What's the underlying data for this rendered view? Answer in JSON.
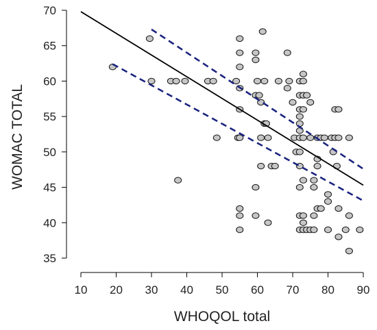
{
  "chart_data": {
    "type": "scatter",
    "title": "",
    "xlabel": "WHOQOL total",
    "ylabel": "WOMAC TOTAL",
    "xlim": [
      10,
      90
    ],
    "ylim": [
      35,
      70
    ],
    "x_ticks": [
      "10",
      "20",
      "30",
      "40",
      "50",
      "60",
      "70",
      "80",
      "90"
    ],
    "y_ticks": [
      "35",
      "40",
      "45",
      "50",
      "55",
      "60",
      "65",
      "70"
    ],
    "grid": false,
    "legend": "none",
    "colors": {
      "points_fill": "#c6c6c6",
      "points_edge": "#111111",
      "fit_line": "#000000",
      "ci_lines": "#1a237e"
    },
    "fit_line": {
      "x": [
        10,
        90
      ],
      "y": [
        69.8,
        45.3
      ]
    },
    "confidence_band": {
      "upper": {
        "x": [
          30,
          90
        ],
        "y": [
          67.3,
          47.6
        ]
      },
      "lower": {
        "x": [
          19,
          90
        ],
        "y": [
          62.4,
          43.1
        ]
      }
    },
    "points": [
      [
        19,
        62
      ],
      [
        29.5,
        66
      ],
      [
        30,
        60
      ],
      [
        35.5,
        60
      ],
      [
        37,
        60
      ],
      [
        37.5,
        46
      ],
      [
        39.5,
        60
      ],
      [
        46,
        60
      ],
      [
        47.5,
        60
      ],
      [
        48.5,
        52
      ],
      [
        54,
        60
      ],
      [
        54.5,
        52
      ],
      [
        55,
        66
      ],
      [
        55,
        64
      ],
      [
        55,
        62
      ],
      [
        55,
        59
      ],
      [
        55,
        56
      ],
      [
        55,
        42
      ],
      [
        55,
        41
      ],
      [
        55,
        39
      ],
      [
        55,
        52
      ],
      [
        59.5,
        64
      ],
      [
        59.5,
        63
      ],
      [
        59.5,
        58
      ],
      [
        59.5,
        45
      ],
      [
        59.5,
        41
      ],
      [
        60,
        60
      ],
      [
        60.5,
        58
      ],
      [
        61,
        57
      ],
      [
        61,
        52
      ],
      [
        61,
        48
      ],
      [
        61.5,
        67
      ],
      [
        62,
        60
      ],
      [
        62,
        54
      ],
      [
        62.5,
        54
      ],
      [
        63,
        52
      ],
      [
        63,
        40
      ],
      [
        64,
        48
      ],
      [
        65,
        48
      ],
      [
        66,
        60
      ],
      [
        68.5,
        64
      ],
      [
        68.5,
        59
      ],
      [
        69,
        60
      ],
      [
        70,
        57
      ],
      [
        70.5,
        52
      ],
      [
        71,
        50
      ],
      [
        72,
        60
      ],
      [
        72,
        58
      ],
      [
        72,
        56
      ],
      [
        72,
        55
      ],
      [
        72,
        54
      ],
      [
        72,
        53
      ],
      [
        72,
        52
      ],
      [
        72,
        50
      ],
      [
        72,
        48
      ],
      [
        72,
        45
      ],
      [
        72,
        41
      ],
      [
        72,
        39
      ],
      [
        73,
        61
      ],
      [
        73,
        60
      ],
      [
        73,
        58
      ],
      [
        73,
        56
      ],
      [
        73,
        52
      ],
      [
        73,
        46
      ],
      [
        73,
        41
      ],
      [
        73,
        40
      ],
      [
        73,
        39
      ],
      [
        74,
        58
      ],
      [
        74,
        39
      ],
      [
        75,
        57
      ],
      [
        75,
        52
      ],
      [
        75,
        39
      ],
      [
        76,
        46
      ],
      [
        76,
        45
      ],
      [
        76,
        41
      ],
      [
        76,
        39
      ],
      [
        77,
        52
      ],
      [
        77,
        49
      ],
      [
        77,
        48
      ],
      [
        77,
        42
      ],
      [
        78,
        52
      ],
      [
        78,
        42
      ],
      [
        79,
        52
      ],
      [
        80,
        44
      ],
      [
        80,
        43
      ],
      [
        80,
        39
      ],
      [
        81,
        52
      ],
      [
        81.5,
        50
      ],
      [
        82,
        52
      ],
      [
        82,
        56
      ],
      [
        82.5,
        48
      ],
      [
        83,
        56
      ],
      [
        83,
        42
      ],
      [
        83,
        38
      ],
      [
        83,
        52
      ],
      [
        85,
        39
      ],
      [
        86,
        52
      ],
      [
        86,
        41
      ],
      [
        86,
        36
      ],
      [
        89,
        39
      ]
    ]
  }
}
